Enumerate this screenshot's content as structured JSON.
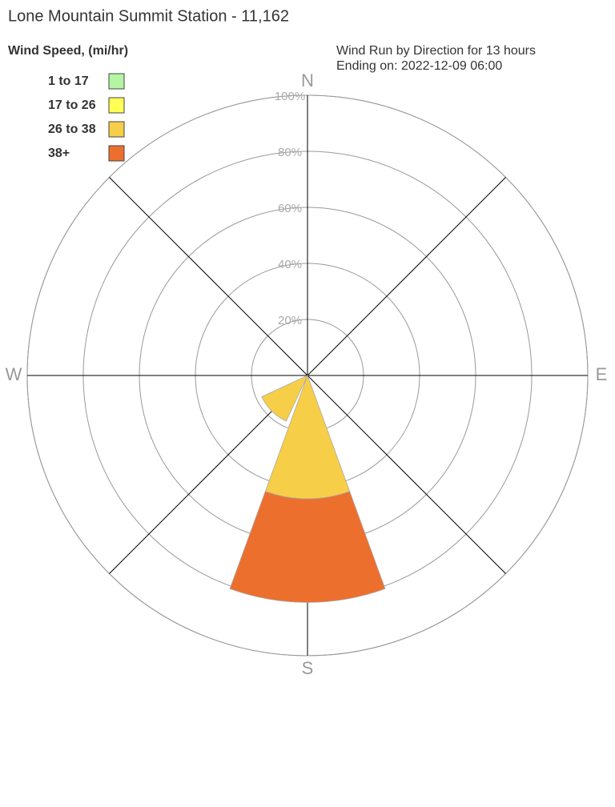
{
  "chart_data": {
    "type": "windrose",
    "title": "Lone Mountain Summit Station - 11,162",
    "subtitle": [
      "Wind Run by Direction for 13 hours",
      "Ending on: 2022-12-09 06:00"
    ],
    "legend_title": "Wind Speed, (mi/hr)",
    "categories": [
      "N",
      null,
      null,
      null,
      "E",
      null,
      null,
      null,
      "S",
      null,
      null,
      null,
      "W",
      null,
      null,
      null
    ],
    "series": [
      {
        "name": "1 to 17",
        "color": "#b4f5a3",
        "values": [
          0,
          0,
          0,
          0,
          0,
          0,
          0,
          0,
          0,
          0,
          0,
          0,
          0,
          0,
          0,
          0
        ]
      },
      {
        "name": "17 to 26",
        "color": "#ffff55",
        "values": [
          0,
          0,
          0,
          0,
          0,
          0,
          0,
          0,
          0,
          0,
          0,
          0,
          0,
          0,
          0,
          0
        ]
      },
      {
        "name": "26 to 38",
        "color": "#f7ce47",
        "values": [
          0,
          0,
          0,
          0,
          0,
          0,
          0,
          0,
          44,
          0,
          18,
          0,
          0,
          0,
          0,
          0
        ]
      },
      {
        "name": "38+",
        "color": "#ed6f2e",
        "values": [
          0,
          0,
          0,
          0,
          0,
          0,
          0,
          0,
          37,
          0,
          0,
          0,
          0,
          0,
          0,
          0
        ]
      }
    ],
    "rlim": [
      0,
      100
    ],
    "rticks": [
      {
        "value": 20,
        "label": "20%"
      },
      {
        "value": 40,
        "label": "40%"
      },
      {
        "value": 60,
        "label": "60%"
      },
      {
        "value": 80,
        "label": "80%"
      },
      {
        "value": 100,
        "label": "100%"
      }
    ]
  }
}
